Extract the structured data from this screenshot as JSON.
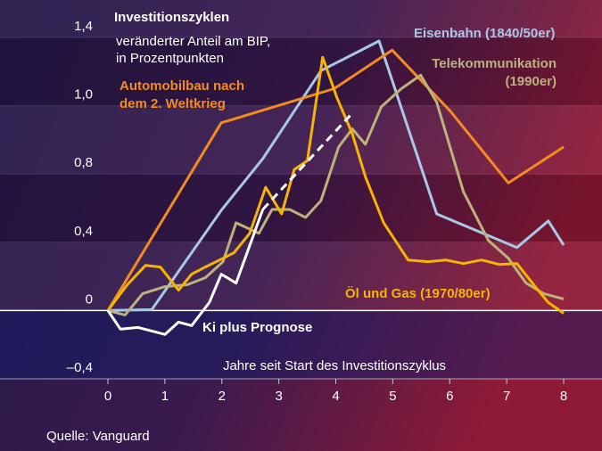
{
  "chart_data": {
    "type": "line",
    "title": "Investitionszyklen",
    "subtitle": [
      "veränderter Anteil am BIP,",
      "in Prozentpunkten"
    ],
    "x_label": "Jahre seit Start des Investitionszyklus",
    "source": "Quelle: Vanguard",
    "xlim": [
      0,
      8
    ],
    "xticks": [
      0,
      1,
      2,
      3,
      4,
      5,
      6,
      7,
      8
    ],
    "ylim": [
      -0.4,
      1.4
    ],
    "yticks": [
      {
        "value": -0.4,
        "label": "–0,4"
      },
      0,
      {
        "value": 0.4,
        "label": "0,4"
      },
      {
        "value": 0.8,
        "label": "0,8"
      },
      {
        "value": 1.0,
        "label": "1,0"
      },
      {
        "value": 1.4,
        "label": "1,4"
      }
    ],
    "series": [
      {
        "label": [
          "Eisenbahn (1840/50er)"
        ],
        "color": "#a9c7e6",
        "x": [
          0,
          0.77,
          1.99,
          2.72,
          3.74,
          4.76,
          5.77,
          7.18,
          7.73,
          8.0
        ],
        "values": [
          0,
          0.005,
          0.587,
          0.845,
          1.205,
          1.379,
          0.566,
          0.369,
          0.525,
          0.384
        ]
      },
      {
        "label": [
          "Automobilbau nach",
          "dem 2. Weltkrieg"
        ],
        "color": "#f28c1e",
        "x": [
          0,
          1.99,
          3.97,
          4.99,
          6.01,
          7.03,
          8.0
        ],
        "values": [
          0,
          0.95,
          1.1,
          1.326,
          0.984,
          0.748,
          0.879
        ]
      },
      {
        "label": [
          "Telekommunikation",
          "(1990er)"
        ],
        "color": "#bbb27c",
        "x": [
          0,
          0.3,
          0.61,
          1.0,
          1.39,
          1.71,
          2.02,
          2.25,
          2.65,
          2.88,
          3.19,
          3.47,
          3.74,
          4.05,
          4.29,
          4.52,
          4.8,
          5.15,
          5.49,
          5.77,
          6.24,
          6.68,
          7.03,
          7.34,
          7.65,
          8.0
        ],
        "values": [
          0,
          -0.026,
          0.099,
          0.14,
          0.151,
          0.192,
          0.286,
          0.514,
          0.452,
          0.592,
          0.592,
          0.545,
          0.644,
          0.879,
          0.932,
          0.887,
          0.997,
          1.1,
          1.179,
          1.021,
          0.696,
          0.41,
          0.306,
          0.161,
          0.099,
          0.068
        ]
      },
      {
        "label": [
          "Öl und Gas (1970/80er)"
        ],
        "color": "#f6b500",
        "x": [
          0,
          0.34,
          0.66,
          0.92,
          1.24,
          1.47,
          1.71,
          2.02,
          2.21,
          2.49,
          2.77,
          3.05,
          3.27,
          3.5,
          3.77,
          4.02,
          4.29,
          4.52,
          4.84,
          5.27,
          5.62,
          5.93,
          6.24,
          6.56,
          6.87,
          7.18,
          7.5,
          7.73,
          8.0
        ],
        "values": [
          0,
          0.151,
          0.265,
          0.255,
          0.119,
          0.213,
          0.255,
          0.306,
          0.338,
          0.452,
          0.722,
          0.566,
          0.813,
          0.839,
          1.284,
          1.047,
          0.918,
          0.784,
          0.514,
          0.296,
          0.286,
          0.296,
          0.275,
          0.296,
          0.27,
          0.275,
          0.14,
          0.047,
          -0.016
        ]
      },
      {
        "label": [
          "Ki plus Prognose"
        ],
        "color": "#ffffff",
        "x": [
          0,
          0.22,
          0.53,
          1.0,
          1.24,
          1.47,
          1.78,
          1.99,
          2.25,
          2.72
        ],
        "values": [
          0,
          -0.109,
          -0.099,
          -0.14,
          -0.068,
          -0.088,
          0.047,
          0.213,
          0.161,
          0.592
        ]
      },
      {
        "color": "#ffffff",
        "dashed": true,
        "x": [
          2.72,
          4.25
        ],
        "values": [
          0.592,
          0.971
        ]
      }
    ]
  }
}
